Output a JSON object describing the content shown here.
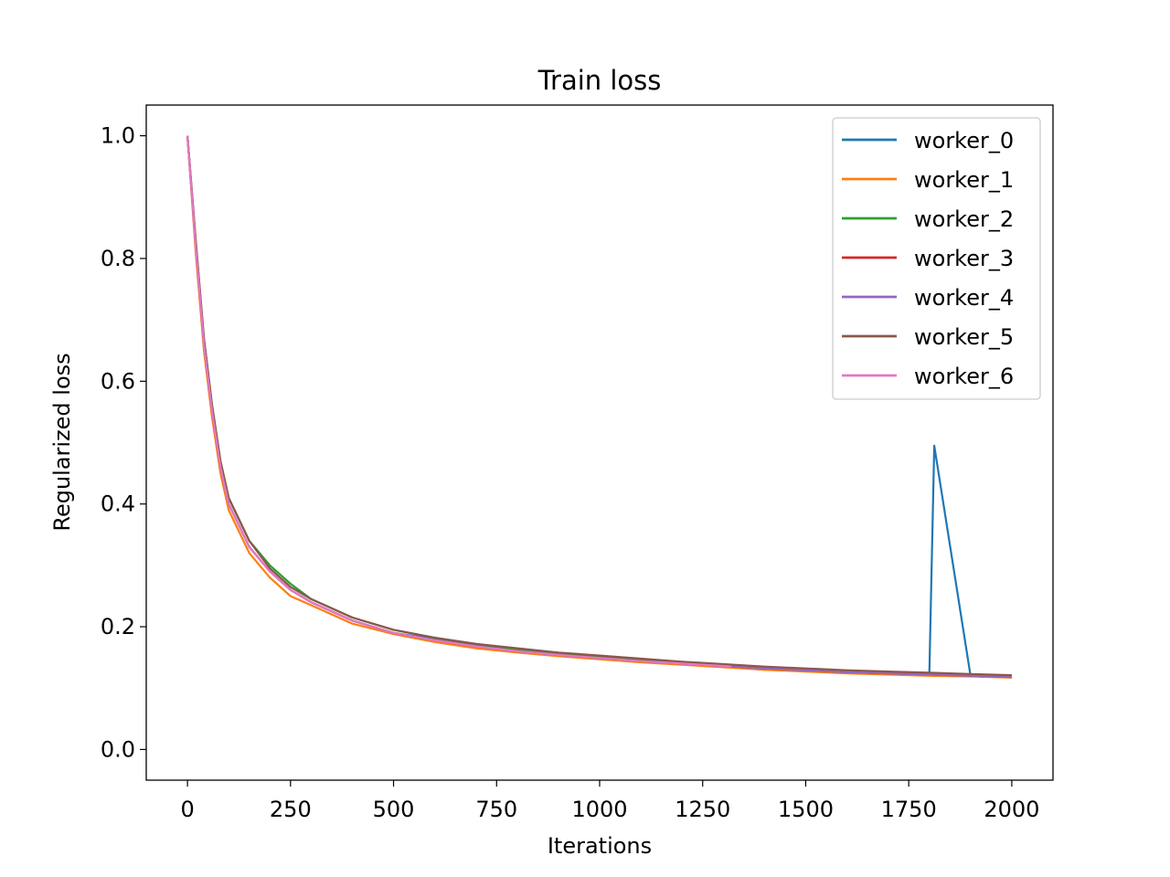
{
  "chart_data": {
    "type": "line",
    "title": "Train loss",
    "xlabel": "Iterations",
    "ylabel": "Regularized loss",
    "xlim": [
      -100,
      2100
    ],
    "ylim": [
      -0.05,
      1.05
    ],
    "xticks": [
      0,
      250,
      500,
      750,
      1000,
      1250,
      1500,
      1750,
      2000
    ],
    "yticks": [
      0.0,
      0.2,
      0.4,
      0.6,
      0.8,
      1.0
    ],
    "xtick_labels": [
      "0",
      "250",
      "500",
      "750",
      "1000",
      "1250",
      "1500",
      "1750",
      "2000"
    ],
    "ytick_labels": [
      "0.0",
      "0.2",
      "0.4",
      "0.6",
      "0.8",
      "1.0"
    ],
    "grid": false,
    "legend_position": "top-right",
    "series": [
      {
        "name": "worker_0",
        "color": "#1f77b4",
        "x": [
          0,
          20,
          40,
          60,
          80,
          100,
          150,
          200,
          250,
          300,
          400,
          500,
          600,
          700,
          800,
          900,
          1000,
          1100,
          1200,
          1300,
          1400,
          1500,
          1600,
          1700,
          1800,
          1812,
          1900,
          2000
        ],
        "y": [
          1.0,
          0.82,
          0.66,
          0.55,
          0.46,
          0.4,
          0.33,
          0.29,
          0.26,
          0.24,
          0.21,
          0.19,
          0.18,
          0.17,
          0.16,
          0.155,
          0.15,
          0.145,
          0.14,
          0.135,
          0.13,
          0.128,
          0.125,
          0.123,
          0.122,
          0.495,
          0.12,
          0.118
        ]
      },
      {
        "name": "worker_1",
        "color": "#ff7f0e",
        "x": [
          0,
          20,
          40,
          60,
          80,
          100,
          150,
          200,
          250,
          300,
          400,
          500,
          600,
          700,
          800,
          900,
          1000,
          1100,
          1200,
          1300,
          1400,
          1500,
          1600,
          1700,
          1800,
          1900,
          2000
        ],
        "y": [
          1.0,
          0.81,
          0.65,
          0.54,
          0.45,
          0.39,
          0.32,
          0.28,
          0.25,
          0.235,
          0.205,
          0.188,
          0.175,
          0.165,
          0.158,
          0.152,
          0.147,
          0.142,
          0.138,
          0.134,
          0.13,
          0.127,
          0.124,
          0.122,
          0.12,
          0.119,
          0.117
        ]
      },
      {
        "name": "worker_2",
        "color": "#2ca02c",
        "x": [
          0,
          20,
          40,
          60,
          80,
          100,
          150,
          200,
          250,
          300,
          400,
          500,
          600,
          700,
          800,
          900,
          1000,
          1100,
          1200,
          1300,
          1320
        ],
        "y": [
          1.0,
          0.83,
          0.67,
          0.56,
          0.47,
          0.41,
          0.34,
          0.3,
          0.27,
          0.245,
          0.215,
          0.195,
          0.182,
          0.172,
          0.163,
          0.157,
          0.151,
          0.146,
          0.141,
          0.137,
          0.136
        ]
      },
      {
        "name": "worker_3",
        "color": "#d62728",
        "x": [
          0,
          20,
          40,
          60,
          80,
          100,
          150,
          200,
          250,
          300,
          400,
          500,
          600,
          700,
          800,
          900,
          1000,
          1100,
          1200,
          1300,
          1400,
          1500,
          1600,
          1700,
          1800,
          1900,
          2000
        ],
        "y": [
          1.0,
          0.82,
          0.66,
          0.55,
          0.46,
          0.4,
          0.33,
          0.29,
          0.26,
          0.24,
          0.21,
          0.19,
          0.178,
          0.168,
          0.16,
          0.154,
          0.149,
          0.144,
          0.14,
          0.136,
          0.132,
          0.129,
          0.126,
          0.124,
          0.122,
          0.12,
          0.118
        ]
      },
      {
        "name": "worker_4",
        "color": "#9467bd",
        "x": [
          0,
          20,
          40,
          60,
          80,
          100,
          150,
          200,
          250,
          300,
          400,
          500,
          600,
          700,
          800,
          900,
          1000,
          1100,
          1200,
          1300,
          1400,
          1500,
          1600,
          1700,
          1800,
          1900,
          2000
        ],
        "y": [
          1.0,
          0.82,
          0.66,
          0.55,
          0.46,
          0.4,
          0.33,
          0.29,
          0.26,
          0.24,
          0.21,
          0.19,
          0.178,
          0.168,
          0.16,
          0.154,
          0.149,
          0.144,
          0.14,
          0.136,
          0.132,
          0.129,
          0.126,
          0.124,
          0.122,
          0.12,
          0.118
        ]
      },
      {
        "name": "worker_5",
        "color": "#8c564b",
        "x": [
          0,
          20,
          40,
          60,
          80,
          100,
          150,
          200,
          250,
          300,
          400,
          500,
          600,
          700,
          800,
          900,
          1000,
          1100,
          1200,
          1300,
          1400,
          1500,
          1600,
          1700,
          1800,
          1900,
          2000
        ],
        "y": [
          1.0,
          0.83,
          0.67,
          0.56,
          0.47,
          0.41,
          0.34,
          0.295,
          0.265,
          0.245,
          0.215,
          0.195,
          0.182,
          0.172,
          0.165,
          0.158,
          0.153,
          0.148,
          0.143,
          0.139,
          0.135,
          0.132,
          0.129,
          0.127,
          0.125,
          0.123,
          0.121
        ]
      },
      {
        "name": "worker_6",
        "color": "#e377c2",
        "x": [
          0,
          20,
          40,
          60,
          80,
          100,
          150,
          200,
          250,
          300,
          400,
          500,
          600,
          700,
          800,
          900,
          1000,
          1100,
          1200,
          1300,
          1320
        ],
        "y": [
          1.0,
          0.82,
          0.66,
          0.55,
          0.46,
          0.4,
          0.33,
          0.29,
          0.26,
          0.24,
          0.21,
          0.19,
          0.178,
          0.168,
          0.16,
          0.154,
          0.149,
          0.144,
          0.14,
          0.136,
          0.135
        ]
      }
    ]
  }
}
